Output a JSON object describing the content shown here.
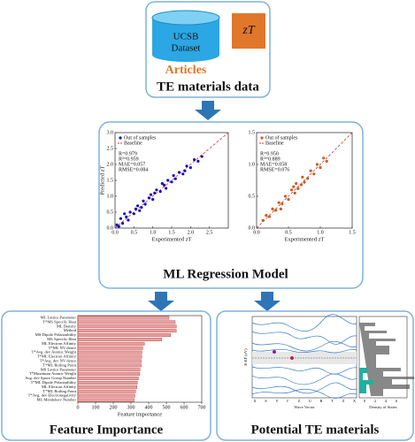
{
  "header": {
    "dataset_lines": [
      "UCSB",
      "Dataset"
    ],
    "zt": "zT",
    "articles": "Articles",
    "title": "TE materials data"
  },
  "regression": {
    "title": "ML Regression Model",
    "charts": [
      {
        "type": "scatter",
        "xlabel": "Experimented zT",
        "ylabel": "Predicted zT",
        "legend": [
          "Out of samples",
          "Baseline"
        ],
        "metrics": [
          "R=0.979",
          "R²=0.959",
          "MAE=0.057",
          "RMSE=0.084"
        ],
        "color": "#1010c0",
        "xlim": [
          0,
          3
        ],
        "ylim": [
          0,
          3
        ],
        "xticks": [
          {
            "value": 0,
            "label": "0.0"
          },
          0.5,
          {
            "value": 1,
            "label": "1.0"
          },
          1.5,
          {
            "value": 2,
            "label": "2.0"
          },
          2.5
        ],
        "yticks": [
          {
            "value": 0,
            "label": "0.0"
          },
          0.5,
          {
            "value": 1,
            "label": "1.0"
          },
          1.5,
          {
            "value": 2,
            "label": "2.0"
          },
          2.5,
          {
            "value": 3,
            "label": "3.0"
          }
        ],
        "x": [
          0.05,
          0.1,
          0.15,
          0.2,
          0.3,
          0.35,
          0.4,
          0.5,
          0.55,
          0.6,
          0.7,
          0.75,
          0.8,
          0.9,
          1.0,
          1.05,
          1.1,
          1.2,
          1.3,
          1.35,
          1.4,
          1.5,
          1.6,
          1.7,
          1.8,
          1.9,
          2.0,
          2.1,
          2.2,
          2.3,
          0.25,
          0.65,
          0.95,
          1.25,
          1.55,
          1.85
        ],
        "y": [
          0.1,
          0.05,
          0.3,
          0.15,
          0.35,
          0.25,
          0.5,
          0.45,
          0.6,
          0.7,
          0.65,
          0.85,
          0.75,
          0.95,
          0.9,
          1.1,
          1.2,
          1.15,
          1.35,
          1.25,
          1.5,
          1.45,
          1.55,
          1.75,
          1.7,
          1.95,
          1.9,
          2.15,
          2.1,
          2.25,
          0.45,
          0.55,
          1.05,
          1.4,
          1.65,
          1.8
        ]
      },
      {
        "type": "scatter",
        "xlabel": "Experimented zT",
        "ylabel": "",
        "legend": [
          "Out of samples",
          "Baseline"
        ],
        "metrics": [
          "R=0.950",
          "R²=0.889",
          "MAE=0.058",
          "RMSE=0.076"
        ],
        "color": "#c8601e",
        "xlim": [
          0,
          1.5
        ],
        "ylim": [
          0,
          1.5
        ],
        "xticks": [
          {
            "value": 0,
            "label": "0.0"
          },
          0.5,
          {
            "value": 1,
            "label": "1.0"
          },
          1.5
        ],
        "yticks": [
          {
            "value": 0,
            "label": "0.0"
          },
          0.5,
          {
            "value": 1,
            "label": "1.0"
          },
          1.5
        ],
        "x": [
          0.1,
          0.15,
          0.2,
          0.25,
          0.3,
          0.35,
          0.4,
          0.45,
          0.5,
          0.55,
          0.6,
          0.62,
          0.65,
          0.7,
          0.72,
          0.75,
          0.8,
          0.85,
          0.9,
          0.95,
          1.0,
          1.05,
          1.1,
          0.38,
          0.58
        ],
        "y": [
          0.12,
          0.2,
          0.18,
          0.3,
          0.28,
          0.4,
          0.38,
          0.5,
          0.45,
          0.6,
          0.55,
          0.7,
          0.62,
          0.68,
          0.8,
          0.72,
          0.78,
          0.9,
          0.85,
          1.0,
          0.95,
          1.1,
          1.05,
          0.3,
          0.65
        ]
      }
    ]
  },
  "features": {
    "title": "Feature Importance",
    "chart": {
      "type": "bar",
      "xlabel": "Feature importance",
      "color": "#e6a0a0",
      "categories": [
        "ML Lattice Parameter",
        "T*MS Specific Heat",
        "ML Density",
        "Method",
        "MS Dipole Polarizability",
        "ML Specific Heat",
        "ML Electron Affinity",
        "T*ML NV dence",
        "T*Avg. dev Atomic Weight",
        "T*ML Electron Affinity",
        "T*Avg. dev NV dence",
        "T*ML Boiling Point",
        "MS Lattice Parameter",
        "T*Maximum Atomic Weight",
        "Avg. dev Space Group Number",
        "T*ML Dipole Polarizability",
        "ML Electron Affinity",
        "T*ML Boiling Point",
        "T*Avg. dev Electronegativity",
        "ML Mendeleev Number"
      ],
      "values": [
        515,
        550,
        556,
        556,
        524,
        474,
        376,
        366,
        362,
        361,
        358,
        358,
        351,
        350,
        342,
        336,
        334,
        326,
        322,
        318
      ],
      "xlim": [
        0,
        700
      ],
      "xticks": [
        0,
        100,
        200,
        300,
        400,
        500,
        600,
        700
      ]
    }
  },
  "potential": {
    "title": "Potential TE materials",
    "ylabel": "E-EF (eV)",
    "xlabel": "Wave Vector",
    "dos_label": "Density of States",
    "kpoints": [
      "X",
      "S",
      "Y",
      "Γ",
      "Z",
      "U",
      "R",
      "T",
      "Z",
      "X"
    ],
    "dos_ticks": [
      0,
      2,
      4,
      6
    ]
  }
}
